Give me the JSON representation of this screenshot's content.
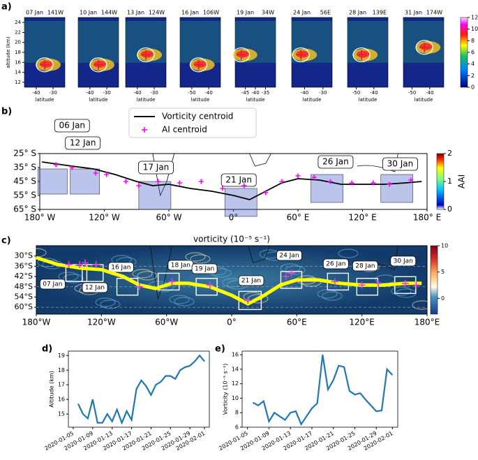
{
  "chart_data": [
    {
      "type": "profile-panels",
      "panel": "a)",
      "ylabel": "altitude (km)",
      "xlabel": "latitude",
      "ylim": [
        11,
        25
      ],
      "yticks": [
        12,
        14,
        16,
        18,
        20,
        22,
        24
      ],
      "colorbar": {
        "lim": [
          0,
          12
        ],
        "ticks": [
          0,
          2,
          4,
          6,
          8,
          10,
          12
        ]
      },
      "centroid_color": "#d62728",
      "panels": [
        {
          "date": "07 Jan",
          "lon": "141W",
          "xlim": [
            -47,
            -23
          ],
          "xticks": [
            -40,
            -30
          ],
          "centroid_latitude": -35,
          "centroid_altitude": 15.5
        },
        {
          "date": "10 Jan",
          "lon": "144W",
          "xlim": [
            -47,
            -23
          ],
          "xticks": [
            -40,
            -30
          ],
          "centroid_latitude": -35,
          "centroid_altitude": 15.5
        },
        {
          "date": "13 Jan",
          "lon": "124W",
          "xlim": [
            -47,
            -23
          ],
          "xticks": [
            -40,
            -30
          ],
          "centroid_latitude": -35,
          "centroid_altitude": 17.5
        },
        {
          "date": "16 Jan",
          "lon": "106W",
          "xlim": [
            -57,
            -33
          ],
          "xticks": [
            -50,
            -40
          ],
          "centroid_latitude": -46,
          "centroid_altitude": 15.5
        },
        {
          "date": "19 Jan",
          "lon": "34W",
          "xlim": [
            -50,
            -30
          ],
          "xticks": [
            -45,
            -40,
            -35
          ],
          "centroid_latitude": -47,
          "centroid_altitude": 17.5
        },
        {
          "date": "24 Jan",
          "lon": "56E",
          "xlim": [
            -47,
            -25
          ],
          "xticks": [
            -40,
            -30
          ],
          "centroid_latitude": -42,
          "centroid_altitude": 17.5
        },
        {
          "date": "28 Jan",
          "lon": "139E",
          "xlim": [
            -55,
            -32
          ],
          "xticks": [
            -50,
            -40
          ],
          "centroid_latitude": -47,
          "centroid_altitude": 17.5
        },
        {
          "date": "31 Jan",
          "lon": "174W",
          "xlim": [
            -55,
            -32
          ],
          "xticks": [
            -50,
            -40
          ],
          "centroid_latitude": -43,
          "centroid_altitude": 19
        }
      ]
    },
    {
      "type": "map-track",
      "panel": "b)",
      "xlim": [
        -180,
        180
      ],
      "ylim": [
        -65,
        -25
      ],
      "xticks": [
        {
          "value": -180,
          "label": "180° W"
        },
        {
          "value": -120,
          "label": "120° W"
        },
        {
          "value": -60,
          "label": "60° W"
        },
        {
          "value": 0,
          "label": "0°"
        },
        {
          "value": 60,
          "label": "60° E"
        },
        {
          "value": 120,
          "label": "120° E"
        },
        {
          "value": 180,
          "label": "180° E"
        }
      ],
      "yticks": [
        {
          "value": -25,
          "label": "25° S"
        },
        {
          "value": -35,
          "label": "35° S"
        },
        {
          "value": -45,
          "label": "45° S"
        },
        {
          "value": -55,
          "label": "55° S"
        },
        {
          "value": -65,
          "label": "65° S"
        }
      ],
      "colorbar": {
        "label": "AAI",
        "lim": [
          0,
          2
        ],
        "ticks": [
          0,
          1,
          2
        ]
      },
      "date_labels": [
        "06 Jan",
        "12 Jan",
        "17 Jan",
        "21 Jan",
        "26 Jan",
        "30 Jan"
      ],
      "series": [
        {
          "name": "Vorticity centroid",
          "color": "#000000",
          "marker": "line",
          "x": [
            -178,
            -150,
            -130,
            -110,
            -90,
            -75,
            -60,
            -40,
            -20,
            0,
            15,
            30,
            45,
            60,
            80,
            100,
            120,
            140,
            160,
            175
          ],
          "values": [
            -31,
            -34,
            -36,
            -40,
            -45,
            -48,
            -47,
            -50,
            -52,
            -55,
            -58,
            -52,
            -46,
            -43,
            -44,
            -47,
            -47,
            -47,
            -46,
            -45
          ]
        },
        {
          "name": "AI centroid",
          "color": "#ff00ff",
          "marker": "plus",
          "x": [
            -165,
            -150,
            -128,
            -118,
            -100,
            -88,
            -70,
            -50,
            -30,
            -10,
            10,
            30,
            45,
            60,
            75,
            90,
            110,
            130,
            145,
            165
          ],
          "values": [
            -33,
            -35,
            -39,
            -40,
            -45,
            -48,
            -45,
            -46,
            -45,
            -50,
            -48,
            -53,
            -45,
            -41,
            -42,
            -45,
            -46,
            -46,
            -47,
            -44
          ]
        }
      ]
    },
    {
      "type": "map-track",
      "panel": "c)",
      "title": "vorticity (10⁻⁵ s⁻¹)",
      "xlim": [
        -180,
        180
      ],
      "ylim": [
        -64,
        -24
      ],
      "xticks": [
        {
          "value": -180,
          "label": "180°W"
        },
        {
          "value": -120,
          "label": "120°W"
        },
        {
          "value": -60,
          "label": "60°W"
        },
        {
          "value": 0,
          "label": "0°"
        },
        {
          "value": 60,
          "label": "60°E"
        },
        {
          "value": 120,
          "label": "120°E"
        },
        {
          "value": 180,
          "label": "180°E"
        }
      ],
      "yticks": [
        {
          "value": -30,
          "label": "30°S"
        },
        {
          "value": -36,
          "label": "36°S"
        },
        {
          "value": -42,
          "label": "42°S"
        },
        {
          "value": -48,
          "label": "48°S"
        },
        {
          "value": -54,
          "label": "54°S"
        },
        {
          "value": -60,
          "label": "60°S"
        }
      ],
      "colorbar": {
        "lim": [
          -3,
          10
        ],
        "ticks": [
          0,
          5,
          10
        ]
      },
      "date_labels": [
        "07 Jan",
        "12 Jan",
        "16 Jan",
        "18 Jan",
        "19 Jan",
        "21 Jan",
        "24 Jan",
        "26 Jan",
        "28 Jan",
        "30 Jan"
      ],
      "series": [
        {
          "color": "#ffff00",
          "marker": "line",
          "x": [
            -180,
            -160,
            -140,
            -120,
            -100,
            -85,
            -70,
            -55,
            -40,
            -20,
            0,
            15,
            30,
            45,
            60,
            80,
            100,
            120,
            140,
            160,
            175
          ],
          "values": [
            -31,
            -35,
            -37,
            -38,
            -42,
            -47,
            -49,
            -46,
            -46,
            -48,
            -53,
            -58,
            -53,
            -47,
            -44,
            -44,
            -46,
            -47,
            -47,
            -46,
            -46
          ]
        },
        {
          "color": "#e040e0",
          "marker": "plus",
          "x": [
            -150,
            -140,
            -135,
            -125,
            -85,
            -55,
            -20,
            15,
            50,
            55,
            95,
            120,
            135,
            160,
            170
          ],
          "values": [
            -35,
            -35,
            -34,
            -35,
            -48,
            -45,
            -47,
            -56,
            -42,
            -40,
            -45,
            -47,
            -46,
            -46,
            -47
          ]
        }
      ]
    },
    {
      "type": "line",
      "panel": "d)",
      "ylabel": "Altitude (km)",
      "xlim": [
        "2020-01-04",
        "2020-02-02"
      ],
      "ylim": [
        14.1,
        19.3
      ],
      "yticks": [
        15,
        16,
        17,
        18,
        19
      ],
      "xticks": [
        "2020-01-05",
        "2020-01-09",
        "2020-01-13",
        "2020-01-17",
        "2020-01-21",
        "2020-01-25",
        "2020-01-29",
        "2020-02-01"
      ],
      "x": [
        "2020-01-06",
        "2020-01-07",
        "2020-01-08",
        "2020-01-09",
        "2020-01-10",
        "2020-01-11",
        "2020-01-12",
        "2020-01-13",
        "2020-01-14",
        "2020-01-15",
        "2020-01-16",
        "2020-01-17",
        "2020-01-18",
        "2020-01-19",
        "2020-01-20",
        "2020-01-21",
        "2020-01-22",
        "2020-01-23",
        "2020-01-24",
        "2020-01-25",
        "2020-01-26",
        "2020-01-27",
        "2020-01-28",
        "2020-01-29",
        "2020-01-30",
        "2020-01-31",
        "2020-02-01"
      ],
      "series": [
        {
          "color": "#1f77b4",
          "values": [
            15.7,
            15.0,
            14.7,
            16.0,
            14.4,
            14.4,
            15.0,
            14.5,
            15.3,
            14.4,
            15.2,
            14.6,
            16.7,
            17.3,
            16.9,
            16.3,
            17.0,
            17.2,
            17.6,
            17.6,
            17.4,
            18.0,
            18.2,
            18.3,
            18.6,
            19.0,
            18.6
          ]
        }
      ]
    },
    {
      "type": "line",
      "panel": "e)",
      "ylabel": "Vorticity (10⁻⁵ s⁻¹)",
      "xlim": [
        "2020-01-04",
        "2020-02-02"
      ],
      "ylim": [
        6,
        16.5
      ],
      "yticks": [
        6,
        8,
        10,
        12,
        14,
        16
      ],
      "xticks": [
        "2020-01-05",
        "2020-01-09",
        "2020-01-13",
        "2020-01-17",
        "2020-01-21",
        "2020-01-25",
        "2020-01-29",
        "2020-02-01"
      ],
      "x": [
        "2020-01-06",
        "2020-01-07",
        "2020-01-08",
        "2020-01-09",
        "2020-01-10",
        "2020-01-11",
        "2020-01-12",
        "2020-01-13",
        "2020-01-14",
        "2020-01-15",
        "2020-01-16",
        "2020-01-17",
        "2020-01-18",
        "2020-01-19",
        "2020-01-20",
        "2020-01-21",
        "2020-01-22",
        "2020-01-23",
        "2020-01-24",
        "2020-01-25",
        "2020-01-26",
        "2020-01-27",
        "2020-01-28",
        "2020-01-29",
        "2020-01-30",
        "2020-01-31",
        "2020-02-01"
      ],
      "series": [
        {
          "color": "#1f77b4",
          "values": [
            9.4,
            9.0,
            9.6,
            6.8,
            8.0,
            7.5,
            7.0,
            8.0,
            8.2,
            6.4,
            7.5,
            8.6,
            9.3,
            16.0,
            11.2,
            12.5,
            14.5,
            14.3,
            11.0,
            10.5,
            10.7,
            9.8,
            9.0,
            8.2,
            8.3,
            14.0,
            13.2
          ]
        }
      ]
    }
  ]
}
